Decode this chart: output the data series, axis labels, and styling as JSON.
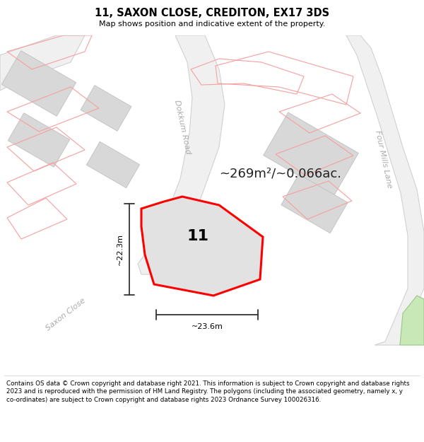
{
  "title": "11, SAXON CLOSE, CREDITON, EX17 3DS",
  "subtitle": "Map shows position and indicative extent of the property.",
  "footer": "Contains OS data © Crown copyright and database right 2021. This information is subject to Crown copyright and database rights 2023 and is reproduced with the permission of HM Land Registry. The polygons (including the associated geometry, namely x, y co-ordinates) are subject to Crown copyright and database rights 2023 Ordnance Survey 100026316.",
  "area_text": "~269m²/~0.066ac.",
  "plot_number": "11",
  "dim_height": "~22.3m",
  "dim_width": "~23.6m",
  "map_bg": "#ffffff",
  "road_fill": "#f2f2f2",
  "road_edge": "#c8c8c8",
  "plot_fill": "#e2e2e2",
  "plot_outline": "#ff0000",
  "building_fill": "#d8d8d8",
  "building_edge": "#c0c0c0",
  "lot_line_color": "#f5a0a0",
  "road_label_color": "#b0b0b0",
  "dim_color": "#333333",
  "green_fill": "#c8e8b8",
  "green_edge": "#98c888"
}
